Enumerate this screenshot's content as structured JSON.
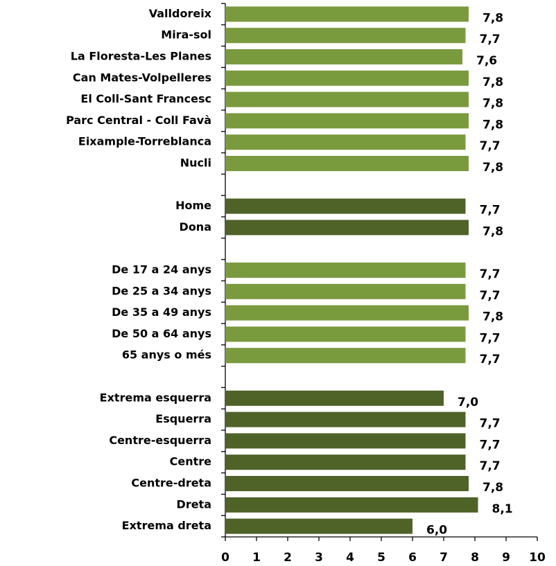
{
  "chart_data": {
    "type": "barh",
    "categories": [
      "Valldoreix",
      "Mira-sol",
      "La Floresta-Les Planes",
      "Can Mates-Volpelleres",
      "El Coll-Sant Francesc",
      "Parc Central - Coll Favà",
      "Eixample-Torreblanca",
      "Nucli",
      null,
      "Home",
      "Dona",
      null,
      "De 17 a 24 anys",
      "De 25 a 34 anys",
      "De 35 a 49 anys",
      "De 50 a 64 anys",
      "65 anys o més",
      null,
      "Extrema esquerra",
      "Esquerra",
      "Centre-esquerra",
      "Centre",
      "Centre-dreta",
      "Dreta",
      "Extrema dreta"
    ],
    "values": [
      7.8,
      7.7,
      7.6,
      7.8,
      7.8,
      7.8,
      7.7,
      7.8,
      null,
      7.7,
      7.8,
      null,
      7.7,
      7.7,
      7.8,
      7.7,
      7.7,
      null,
      7.0,
      7.7,
      7.7,
      7.7,
      7.8,
      8.1,
      6.0
    ],
    "value_labels": [
      "7,8",
      "7,7",
      "7,6",
      "7,8",
      "7,8",
      "7,8",
      "7,7",
      "7,8",
      null,
      "7,7",
      "7,8",
      null,
      "7,7",
      "7,7",
      "7,8",
      "7,7",
      "7,7",
      null,
      "7,0",
      "7,7",
      "7,7",
      "7,7",
      "7,8",
      "8,1",
      "6,0"
    ],
    "colors": [
      "#7a9a3e",
      "#7a9a3e",
      "#7a9a3e",
      "#7a9a3e",
      "#7a9a3e",
      "#7a9a3e",
      "#7a9a3e",
      "#7a9a3e",
      null,
      "#4f6228",
      "#4f6228",
      null,
      "#7a9a3e",
      "#7a9a3e",
      "#7a9a3e",
      "#7a9a3e",
      "#7a9a3e",
      null,
      "#4f6228",
      "#4f6228",
      "#4f6228",
      "#4f6228",
      "#4f6228",
      "#4f6228",
      "#4f6228"
    ],
    "xlim": [
      0,
      10
    ],
    "xticks": [
      0,
      1,
      2,
      3,
      4,
      5,
      6,
      7,
      8,
      9,
      10
    ]
  }
}
